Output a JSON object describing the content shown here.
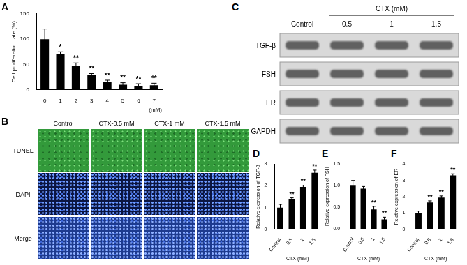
{
  "chart_data": [
    {
      "type": "bar",
      "panel": "A",
      "ylabel": "Cell proliferation rate (%)",
      "xlabel": "(mM)",
      "categories": [
        "0",
        "1",
        "2",
        "3",
        "4",
        "5",
        "6",
        "7"
      ],
      "values": [
        100,
        70,
        48,
        30,
        16,
        10,
        8,
        9
      ],
      "error": [
        20,
        5,
        5,
        2,
        3,
        4,
        4,
        4
      ],
      "significance": [
        null,
        "*",
        "**",
        "**",
        "**",
        "**",
        "**",
        "**"
      ],
      "color": "#000000",
      "ylim": [
        0,
        150
      ],
      "yticks": [
        0,
        50,
        100,
        150
      ],
      "grid": false
    },
    {
      "type": "bar",
      "panel": "D",
      "ylabel": "Relative expression of TGF-β",
      "xlabel": "CTX (mM)",
      "categories": [
        "Control",
        "0.5",
        "1",
        "1.5"
      ],
      "values": [
        1.0,
        1.4,
        1.95,
        2.6
      ],
      "error": [
        0.15,
        0.05,
        0.08,
        0.12
      ],
      "significance": [
        null,
        "**",
        "**",
        "**"
      ],
      "color": "#000000",
      "ylim": [
        0,
        3
      ],
      "yticks": [
        0,
        1,
        2,
        3
      ],
      "grid": false
    },
    {
      "type": "bar",
      "panel": "E",
      "ylabel": "Relative expression of FSH",
      "xlabel": "CTX (mM)",
      "categories": [
        "Control",
        "0.5",
        "1",
        "1.5"
      ],
      "values": [
        1.0,
        0.93,
        0.45,
        0.22
      ],
      "error": [
        0.12,
        0.05,
        0.07,
        0.05
      ],
      "significance": [
        null,
        null,
        "**",
        "**"
      ],
      "color": "#000000",
      "ylim": [
        0,
        1.5
      ],
      "yticks": [
        {
          "value": 0,
          "label": "0.0"
        },
        0.5,
        {
          "value": 1,
          "label": "1.0"
        },
        1.5
      ],
      "grid": false
    },
    {
      "type": "bar",
      "panel": "F",
      "ylabel": "Relative expression of ER",
      "xlabel": "CTX (mM)",
      "categories": [
        "Control",
        "0.5",
        "1",
        "1.5"
      ],
      "values": [
        1.0,
        1.65,
        1.95,
        3.3
      ],
      "error": [
        0.12,
        0.1,
        0.1,
        0.1
      ],
      "significance": [
        null,
        "**",
        "**",
        "**"
      ],
      "color": "#000000",
      "ylim": [
        0,
        4
      ],
      "yticks": [
        0,
        1,
        2,
        3,
        4
      ],
      "grid": false
    }
  ],
  "images": {
    "panel": "B",
    "columns": [
      "Control",
      "CTX-0.5 mM",
      "CTX-1 mM",
      "CTX-1.5 mM"
    ],
    "rows": [
      "TUNEL",
      "DAPI",
      "Merge"
    ]
  },
  "western_blot": {
    "panel": "C",
    "group_label": "CTX (mM)",
    "lanes": [
      "Control",
      "0.5",
      "1",
      "1.5"
    ],
    "rows": [
      "TGF-β",
      "FSH",
      "ER",
      "GAPDH"
    ]
  }
}
